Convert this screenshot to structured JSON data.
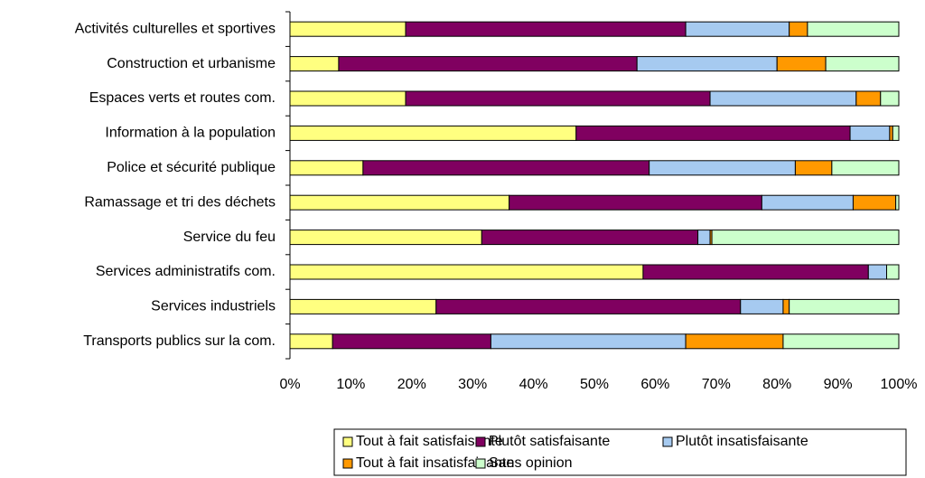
{
  "chart_data": {
    "type": "stacked_barh",
    "categories": [
      "Activités culturelles et sportives",
      "Construction et urbanisme",
      "Espaces verts et routes com.",
      "Information à la population",
      "Police et sécurité publique",
      "Ramassage et tri des déchets",
      "Service du feu",
      "Services administratifs com.",
      "Services industriels",
      "Transports publics sur la com."
    ],
    "series": [
      {
        "name": "Tout à fait satisfaisante",
        "color": "#ffff80",
        "values": [
          19,
          8,
          19,
          47,
          12,
          36,
          31.5,
          58,
          24,
          7
        ]
      },
      {
        "name": "Plutôt satisfaisante",
        "color": "#800060",
        "values": [
          46,
          49,
          50,
          45,
          47,
          41.5,
          35.5,
          37,
          50,
          26
        ]
      },
      {
        "name": "Plutôt insatisfaisante",
        "color": "#a6caf0",
        "values": [
          17,
          23,
          24,
          6.5,
          24,
          15,
          2,
          3,
          7,
          32
        ]
      },
      {
        "name": "Tout à fait insatisfaisante",
        "color": "#ff9900",
        "values": [
          3,
          8,
          4,
          0.5,
          6,
          7,
          0.3,
          0,
          1,
          16
        ]
      },
      {
        "name": "Sans opinion",
        "color": "#ccffcc",
        "values": [
          15,
          12,
          3,
          1,
          11,
          0.5,
          30.7,
          2,
          18,
          19
        ]
      }
    ],
    "xlim": [
      0,
      100
    ],
    "xticks": [
      {
        "value": 0,
        "label": "0%"
      },
      {
        "value": 10,
        "label": "10%"
      },
      {
        "value": 20,
        "label": "20%"
      },
      {
        "value": 30,
        "label": "30%"
      },
      {
        "value": 40,
        "label": "40%"
      },
      {
        "value": 50,
        "label": "50%"
      },
      {
        "value": 60,
        "label": "60%"
      },
      {
        "value": 70,
        "label": "70%"
      },
      {
        "value": 80,
        "label": "80%"
      },
      {
        "value": 90,
        "label": "90%"
      },
      {
        "value": 100,
        "label": "100%"
      }
    ],
    "legend": "bottom"
  }
}
